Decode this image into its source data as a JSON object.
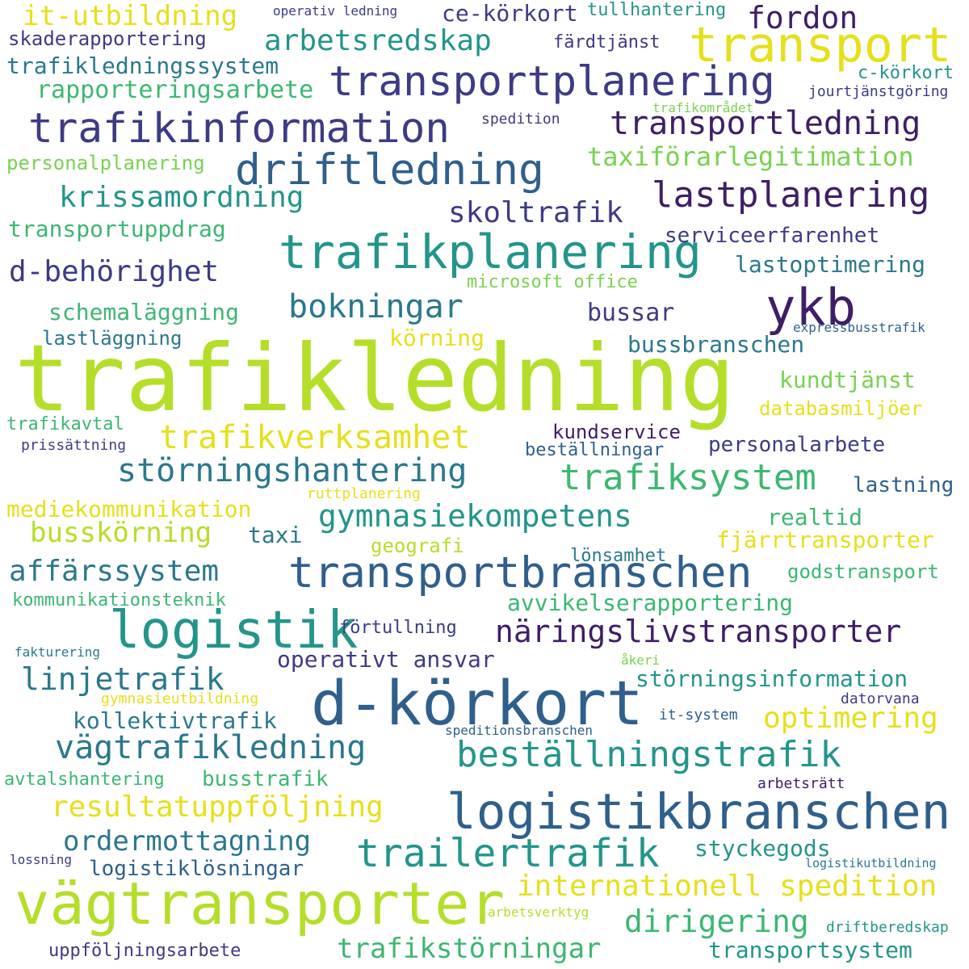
{
  "palette": {
    "background": "#ffffff",
    "purple_dark": "#3f1e67",
    "indigo": "#3d3b85",
    "blue": "#2f5f8c",
    "teal_blue": "#2b788c",
    "teal": "#23958a",
    "green": "#3db771",
    "light_green": "#7ad151",
    "lime": "#b5de2b",
    "yellow": "#e5e01b"
  },
  "words": [
    {
      "text": "trafikledning",
      "color": "#b5de2b"
    },
    {
      "text": "d-körkort",
      "color": "#2f5f8c"
    },
    {
      "text": "vägtransporter",
      "color": "#b5de2b"
    },
    {
      "text": "transport",
      "color": "#e5e01b"
    },
    {
      "text": "trafikplanering",
      "color": "#23958a"
    },
    {
      "text": "transportplanering",
      "color": "#3d3b85"
    },
    {
      "text": "logistik",
      "color": "#23958a"
    },
    {
      "text": "transportbranschen",
      "color": "#2f5f8c"
    },
    {
      "text": "logistikbranschen",
      "color": "#2f5f8c"
    },
    {
      "text": "trafikinformation",
      "color": "#3d3b85"
    },
    {
      "text": "driftledning",
      "color": "#2f5f8c"
    },
    {
      "text": "ykb",
      "color": "#3f1e67"
    },
    {
      "text": "lastplanering",
      "color": "#3f1e67"
    },
    {
      "text": "transportledning",
      "color": "#3f1e67"
    },
    {
      "text": "beställningstrafik",
      "color": "#23958a"
    },
    {
      "text": "trailertrafik",
      "color": "#23958a"
    },
    {
      "text": "näringslivstransporter",
      "color": "#3f1e67"
    },
    {
      "text": "trafiksystem",
      "color": "#3db771"
    },
    {
      "text": "störningshantering",
      "color": "#2b788c"
    },
    {
      "text": "trafikverksamhet",
      "color": "#e5e01b"
    },
    {
      "text": "bokningar",
      "color": "#2b788c"
    },
    {
      "text": "arbetsredskap",
      "color": "#23958a"
    },
    {
      "text": "fordon",
      "color": "#3f1e67"
    },
    {
      "text": "krissamordning",
      "color": "#23958a"
    },
    {
      "text": "skoltrafik",
      "color": "#3d3b85"
    },
    {
      "text": "d-behörighet",
      "color": "#3d3b85"
    },
    {
      "text": "taxiförarlegitimation",
      "color": "#7ad151"
    },
    {
      "text": "gymnasiekompetens",
      "color": "#23958a"
    },
    {
      "text": "affärssystem",
      "color": "#2b788c"
    },
    {
      "text": "resultatuppföljning",
      "color": "#e5e01b"
    },
    {
      "text": "internationell spedition",
      "color": "#e5e01b"
    },
    {
      "text": "vägtrafikledning",
      "color": "#2b788c"
    },
    {
      "text": "dirigering",
      "color": "#3db771"
    },
    {
      "text": "optimering",
      "color": "#e5e01b"
    },
    {
      "text": "trafikstörningar",
      "color": "#3db771"
    },
    {
      "text": "linjetrafik",
      "color": "#2b788c"
    },
    {
      "text": "ordermottagning",
      "color": "#2b788c"
    },
    {
      "text": "it-utbildning",
      "color": "#e5e01b"
    },
    {
      "text": "rapporteringsarbete",
      "color": "#3db771"
    },
    {
      "text": "trafikledningssystem",
      "color": "#2b788c"
    },
    {
      "text": "skaderapportering",
      "color": "#3d3b85"
    },
    {
      "text": "ce-körkort",
      "color": "#3d3b85"
    },
    {
      "text": "tullhantering",
      "color": "#23958a"
    },
    {
      "text": "operativ ledning",
      "color": "#3d3b85"
    },
    {
      "text": "färdtjänst",
      "color": "#3d3b85"
    },
    {
      "text": "c-körkort",
      "color": "#23958a"
    },
    {
      "text": "jourtjänstgöring",
      "color": "#3d3b85"
    },
    {
      "text": "trafikområdet",
      "color": "#7ad151"
    },
    {
      "text": "spedition",
      "color": "#3d3b85"
    },
    {
      "text": "personalplanering",
      "color": "#7ad151"
    },
    {
      "text": "transportuppdrag",
      "color": "#3db771"
    },
    {
      "text": "serviceerfarenhet",
      "color": "#3d3b85"
    },
    {
      "text": "lastoptimering",
      "color": "#2b788c"
    },
    {
      "text": "microsoft office",
      "color": "#7ad151"
    },
    {
      "text": "schemaläggning",
      "color": "#3db771"
    },
    {
      "text": "bussar",
      "color": "#3d3b85"
    },
    {
      "text": "lastläggning",
      "color": "#2b788c"
    },
    {
      "text": "körning",
      "color": "#e5e01b"
    },
    {
      "text": "bussbranschen",
      "color": "#2b788c"
    },
    {
      "text": "expressbusstrafik",
      "color": "#2f5f8c"
    },
    {
      "text": "kundtjänst",
      "color": "#7ad151"
    },
    {
      "text": "databasmiljöer",
      "color": "#e5e01b"
    },
    {
      "text": "trafikavtal",
      "color": "#3db771"
    },
    {
      "text": "kundservice",
      "color": "#3f1e67"
    },
    {
      "text": "prissättning",
      "color": "#3d3b85"
    },
    {
      "text": "beställningar",
      "color": "#2f5f8c"
    },
    {
      "text": "personalarbete",
      "color": "#3d3b85"
    },
    {
      "text": "lastning",
      "color": "#2f5f8c"
    },
    {
      "text": "ruttplanering",
      "color": "#e5e01b"
    },
    {
      "text": "mediekommunikation",
      "color": "#e5e01b"
    },
    {
      "text": "realtid",
      "color": "#3db771"
    },
    {
      "text": "busskörning",
      "color": "#b5de2b"
    },
    {
      "text": "taxi",
      "color": "#2b788c"
    },
    {
      "text": "fjärrtransporter",
      "color": "#e5e01b"
    },
    {
      "text": "geografi",
      "color": "#b5de2b"
    },
    {
      "text": "lönsamhet",
      "color": "#2b788c"
    },
    {
      "text": "godstransport",
      "color": "#3db771"
    },
    {
      "text": "kommunikationsteknik",
      "color": "#3db771"
    },
    {
      "text": "avvikelserapportering",
      "color": "#3db771"
    },
    {
      "text": "förtullning",
      "color": "#3d3b85"
    },
    {
      "text": "fakturering",
      "color": "#2b788c"
    },
    {
      "text": "åkeri",
      "color": "#7ad151"
    },
    {
      "text": "operativt ansvar",
      "color": "#3d3b85"
    },
    {
      "text": "störningsinformation",
      "color": "#23958a"
    },
    {
      "text": "gymnasieutbildning",
      "color": "#e5e01b"
    },
    {
      "text": "datorvana",
      "color": "#3d3b85"
    },
    {
      "text": "kollektivtrafik",
      "color": "#2b788c"
    },
    {
      "text": "it-system",
      "color": "#2f5f8c"
    },
    {
      "text": "speditionsbranschen",
      "color": "#2f5f8c"
    },
    {
      "text": "avtalshantering",
      "color": "#3db771"
    },
    {
      "text": "busstrafik",
      "color": "#3db771"
    },
    {
      "text": "arbetsrätt",
      "color": "#3f1e67"
    },
    {
      "text": "styckegods",
      "color": "#23958a"
    },
    {
      "text": "lossning",
      "color": "#3d3b85"
    },
    {
      "text": "logistiklösningar",
      "color": "#2f5f8c"
    },
    {
      "text": "logistikutbildning",
      "color": "#2b788c"
    },
    {
      "text": "arbetsverktyg",
      "color": "#b5de2b"
    },
    {
      "text": "driftberedskap",
      "color": "#23958a"
    },
    {
      "text": "uppföljningsarbete",
      "color": "#3d3b85"
    },
    {
      "text": "transportsystem",
      "color": "#23958a"
    }
  ]
}
